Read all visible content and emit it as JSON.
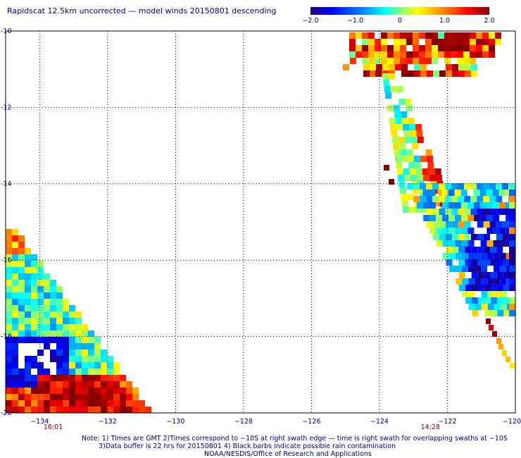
{
  "title": "Rapidscat 12.5km uncorrected — model winds 20150801 descending",
  "colorbar": {
    "labels": [
      "−2.0",
      "−1.0",
      "0",
      "1.0",
      "2.0"
    ],
    "values": [
      -2.0,
      -1.0,
      0,
      1.0,
      2.0
    ],
    "range": [
      -2.0,
      2.0
    ]
  },
  "axes": {
    "lat_labels": [
      "-10",
      "-12",
      "-14",
      "-16",
      "-18",
      "-20"
    ],
    "lat_values": [
      -10,
      -12,
      -14,
      -16,
      -18,
      -20
    ],
    "lon_labels": [
      "−134",
      "−132",
      "−130",
      "−128",
      "−126",
      "−124",
      "−122",
      "−120"
    ],
    "lon_values": [
      -134,
      -132,
      -130,
      -128,
      -126,
      -124,
      -122,
      -120
    ],
    "lon_range": [
      -135,
      -120
    ],
    "lat_range": [
      -20,
      -10
    ],
    "grid": "dotted"
  },
  "swath_times": [
    {
      "label": "16:01",
      "lon": -133.6
    },
    {
      "label": "14:28",
      "lon": -122.5
    }
  ],
  "notes": [
    "Note: 1) Times are GMT 2)Times correspond to −10S at right swath edge — time is right swath for overlapping swaths at −10S",
    "3)Data buffer is 22 hrs for 20150801 4) Black barbs indicate possible rain contamination",
    "NOAA/NESDIS/Office of Research and Applications"
  ],
  "colors": {
    "text": "#000080",
    "time_label": "#8b0000",
    "grid": "#000000"
  }
}
